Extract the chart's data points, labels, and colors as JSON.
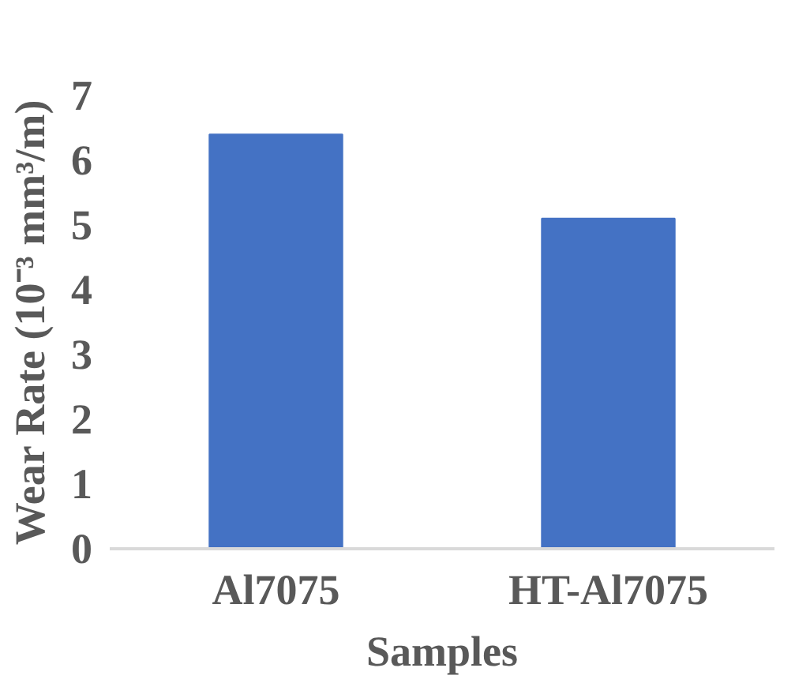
{
  "chart_data": {
    "type": "bar",
    "xlabel": "Samples",
    "ylabel": "Wear Rate (10⁻³ mm³/m)",
    "categories": [
      "Al7075",
      "HT-Al7075"
    ],
    "values": [
      6.4,
      5.1
    ],
    "color": "#4472c4",
    "ylim": [
      0,
      7
    ],
    "yticks": [
      0,
      1,
      2,
      3,
      4,
      5,
      6,
      7
    ],
    "grid": false
  }
}
